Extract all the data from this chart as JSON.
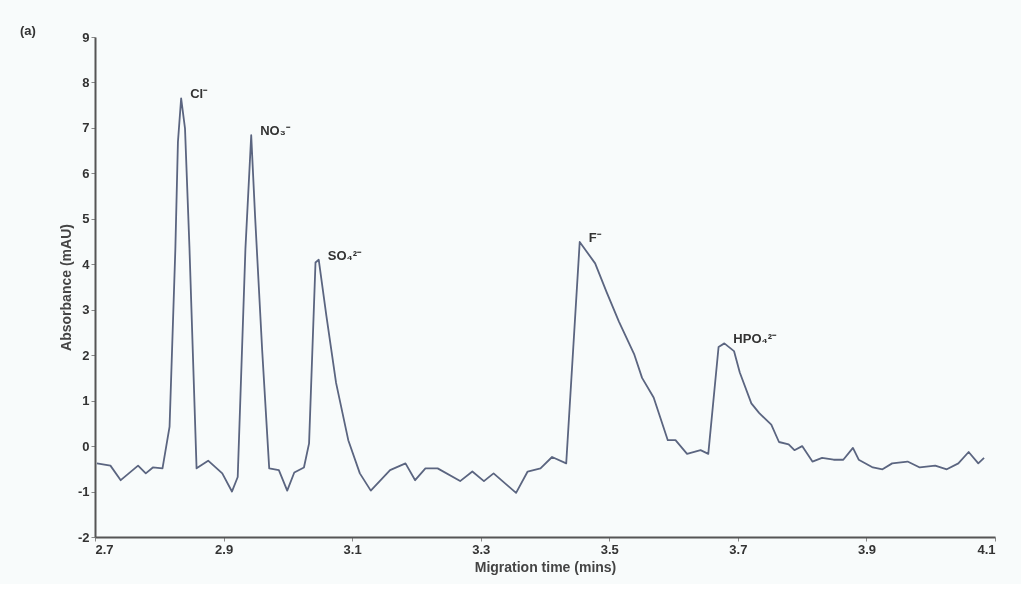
{
  "chart_data": {
    "type": "line",
    "xlabel": "Migration time (mins)",
    "ylabel": "Absorbance (mAU)",
    "x": [
      2.703,
      2.724,
      2.74,
      2.767,
      2.779,
      2.79,
      2.805,
      2.816,
      2.825,
      2.829,
      2.834,
      2.84,
      2.847,
      2.858,
      2.876,
      2.898,
      2.913,
      2.922,
      2.934,
      2.943,
      2.949,
      2.96,
      2.971,
      2.986,
      2.999,
      3.01,
      3.025,
      3.033,
      3.043,
      3.048,
      3.06,
      3.075,
      3.094,
      3.112,
      3.129,
      3.159,
      3.183,
      3.198,
      3.214,
      3.233,
      3.268,
      3.287,
      3.305,
      3.32,
      3.355,
      3.373,
      3.393,
      3.411,
      3.433,
      3.454,
      3.478,
      3.496,
      3.515,
      3.539,
      3.551,
      3.569,
      3.591,
      3.603,
      3.621,
      3.642,
      3.654,
      3.67,
      3.679,
      3.694,
      3.703,
      3.721,
      3.733,
      3.752,
      3.764,
      3.779,
      3.788,
      3.8,
      3.816,
      3.831,
      3.849,
      3.864,
      3.879,
      3.888,
      3.91,
      3.925,
      3.94,
      3.964,
      3.983,
      4.007,
      4.025,
      4.043,
      4.059,
      4.074,
      4.083
    ],
    "series": [
      {
        "color": "#5b6580",
        "values": [
          -0.38,
          -0.43,
          -0.75,
          -0.43,
          -0.6,
          -0.47,
          -0.49,
          0.43,
          4.34,
          6.69,
          7.65,
          6.99,
          4.34,
          -0.49,
          -0.32,
          -0.6,
          -1.0,
          -0.68,
          4.34,
          6.84,
          5.06,
          2.12,
          -0.49,
          -0.53,
          -0.98,
          -0.58,
          -0.47,
          0.06,
          4.04,
          4.1,
          2.86,
          1.39,
          0.13,
          -0.6,
          -0.98,
          -0.53,
          -0.38,
          -0.75,
          -0.49,
          -0.49,
          -0.77,
          -0.56,
          -0.77,
          -0.6,
          -1.03,
          -0.56,
          -0.49,
          -0.24,
          -0.38,
          4.49,
          4.02,
          3.38,
          2.74,
          2.01,
          1.5,
          1.07,
          0.13,
          0.13,
          -0.17,
          -0.09,
          -0.17,
          2.18,
          2.26,
          2.09,
          1.62,
          0.94,
          0.73,
          0.47,
          0.09,
          0.04,
          -0.09,
          0.0,
          -0.34,
          -0.26,
          -0.3,
          -0.3,
          -0.04,
          -0.3,
          -0.47,
          -0.51,
          -0.38,
          -0.34,
          -0.47,
          -0.43,
          -0.51,
          -0.38,
          -0.13,
          -0.38,
          -0.26
        ]
      }
    ],
    "xlim": [
      2.7,
      4.1
    ],
    "xticks": [
      2.7,
      2.9,
      3.1,
      3.3,
      3.5,
      3.7,
      3.9,
      4.1
    ],
    "ylim": [
      -2,
      9
    ],
    "yticks": [
      -2,
      -1,
      0,
      1,
      2,
      3,
      4,
      5,
      6,
      7,
      8,
      9
    ],
    "grid": false,
    "line_style": "solid",
    "annotations": [
      "(a)",
      {
        "text": "Cl⁻",
        "x": 2.834,
        "y": 7.65
      },
      {
        "text": "NO₃⁻",
        "x": 2.943,
        "y": 6.84
      },
      {
        "text": "SO₄²⁻",
        "x": 3.048,
        "y": 4.1
      },
      {
        "text": "F⁻",
        "x": 3.454,
        "y": 4.49
      },
      {
        "text": "HPO₄²⁻",
        "x": 3.679,
        "y": 2.26
      }
    ]
  }
}
